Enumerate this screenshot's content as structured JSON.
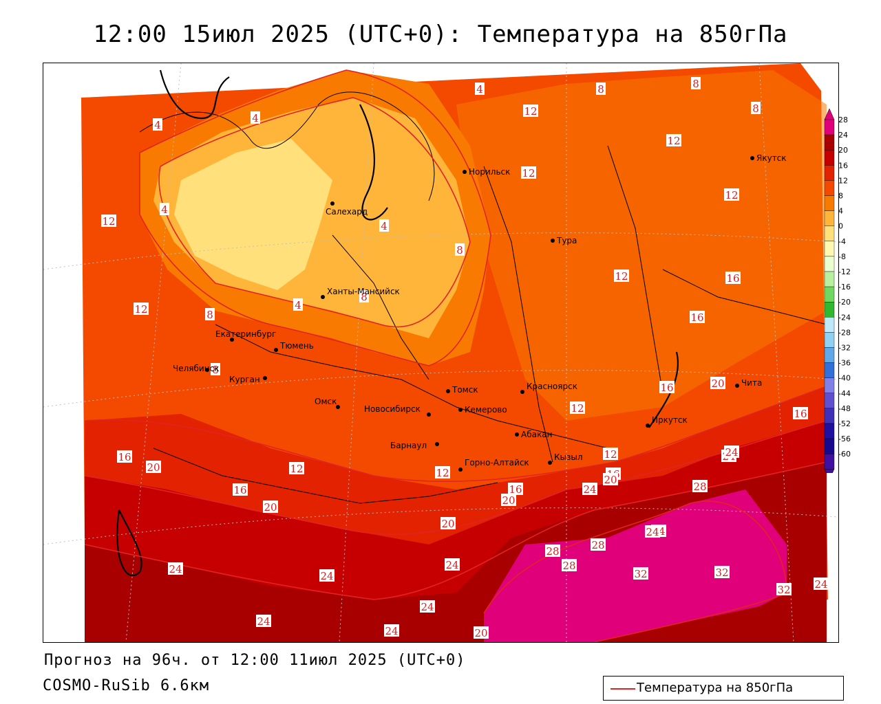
{
  "title": "12:00 15июл 2025 (UTC+0): Температура на 850гПа",
  "footer": {
    "forecast": "Прогноз на 96ч. от 12:00 11июл 2025 (UTC+0)",
    "model": "COSMO-RuSib 6.6км"
  },
  "legend": {
    "label": "Температура на 850гПа",
    "line_color": "#e02424"
  },
  "colorbar": {
    "levels": [
      "28",
      "24",
      "20",
      "16",
      "12",
      "8",
      "4",
      "0",
      "-4",
      "-8",
      "-12",
      "-16",
      "-20",
      "-24",
      "-28",
      "-32",
      "-36",
      "-40",
      "-44",
      "-48",
      "-52",
      "-56",
      "-60"
    ],
    "colors": [
      "#e0007a",
      "#a80000",
      "#c60000",
      "#e22200",
      "#f44a00",
      "#f87a00",
      "#ffb43a",
      "#ffe07a",
      "#fff8b0",
      "#eaffd0",
      "#b8f0a0",
      "#70d860",
      "#30b830",
      "#bfe8f8",
      "#90d0f0",
      "#60a8e8",
      "#3070d8",
      "#8080e8",
      "#6050d0",
      "#4030b8",
      "#2010a0",
      "#180890",
      "#4010a0"
    ]
  },
  "cities": [
    {
      "name": "Норильск"
    },
    {
      "name": "Салехард"
    },
    {
      "name": "Тура"
    },
    {
      "name": "Якутск"
    },
    {
      "name": "Ханты-Мансийск"
    },
    {
      "name": "Екатеринбург"
    },
    {
      "name": "Тюмень"
    },
    {
      "name": "Челябинск"
    },
    {
      "name": "Курган"
    },
    {
      "name": "Омск"
    },
    {
      "name": "Новосибирск"
    },
    {
      "name": "Томск"
    },
    {
      "name": "Кемерово"
    },
    {
      "name": "Красноярск"
    },
    {
      "name": "Абакан"
    },
    {
      "name": "Барнаул"
    },
    {
      "name": "Горно-Алтайск"
    },
    {
      "name": "Кызыл"
    },
    {
      "name": "Иркутск"
    },
    {
      "name": "Чита"
    }
  ],
  "isotherm_labels": [
    "4",
    "4",
    "4",
    "4",
    "4",
    "4",
    "8",
    "8",
    "8",
    "8",
    "8",
    "8",
    "8",
    "12",
    "12",
    "12",
    "12",
    "12",
    "12",
    "12",
    "12",
    "12",
    "12",
    "12",
    "12",
    "16",
    "16",
    "16",
    "16",
    "16",
    "16",
    "16",
    "16",
    "20",
    "20",
    "20",
    "20",
    "20",
    "20",
    "20",
    "24",
    "24",
    "24",
    "24",
    "24",
    "24",
    "24",
    "24",
    "24",
    "24",
    "28",
    "28",
    "28",
    "28",
    "32",
    "32",
    "32",
    "24",
    "24"
  ]
}
